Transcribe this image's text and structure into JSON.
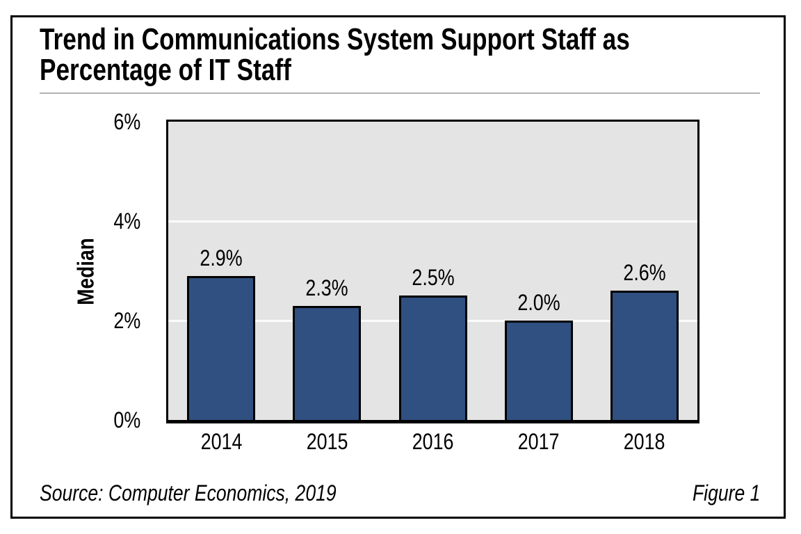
{
  "figure": {
    "title_line1": "Trend in Communications System Support Staff as",
    "title_line2": "Percentage of IT Staff",
    "source": "Source: Computer Economics, 2019",
    "figure_label": "Figure 1"
  },
  "chart_data": {
    "type": "bar",
    "title": "Trend in Communications System Support Staff as Percentage of IT Staff",
    "categories": [
      "2014",
      "2015",
      "2016",
      "2017",
      "2018"
    ],
    "values": [
      2.9,
      2.3,
      2.5,
      2.0,
      2.6
    ],
    "value_labels": [
      "2.9%",
      "2.3%",
      "2.5%",
      "2.0%",
      "2.6%"
    ],
    "xlabel": "",
    "ylabel": "Median",
    "ylim": [
      0,
      6
    ],
    "ytick_values": [
      0,
      2,
      4,
      6
    ],
    "ytick_labels": [
      "0%",
      "2%",
      "4%",
      "6%"
    ],
    "gridline_values": [
      2,
      4
    ],
    "legend": "none",
    "bar_color": "#2f5080",
    "bar_border_color": "#000000",
    "plot_bg_color": "#e4e4e4",
    "gridline_color": "#fbfbfb"
  }
}
